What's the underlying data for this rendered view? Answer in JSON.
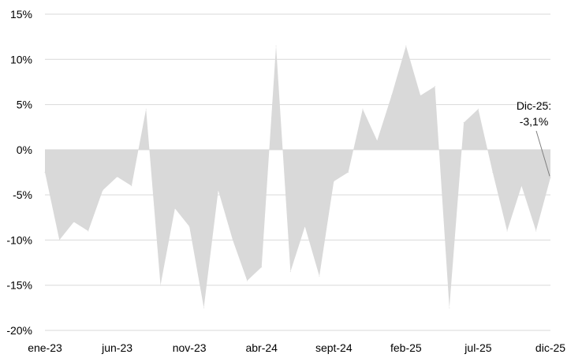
{
  "chart_data": {
    "type": "area",
    "title": "",
    "xlabel": "",
    "ylabel": "",
    "ylim": [
      -20,
      15
    ],
    "yticks": [
      15,
      10,
      5,
      0,
      -5,
      -10,
      -15,
      -20
    ],
    "ytick_labels": [
      "15%",
      "10%",
      "5%",
      "0%",
      "-5%",
      "-10%",
      "-15%",
      "-20%"
    ],
    "xtick_labels": [
      "ene-23",
      "jun-23",
      "nov-23",
      "abr-24",
      "sept-24",
      "feb-25",
      "jul-25",
      "dic-25"
    ],
    "xtick_index": [
      0,
      5,
      10,
      15,
      20,
      25,
      30,
      35
    ],
    "grid": true,
    "fill_color": "#d9d9d9",
    "grid_color": "#d9d9d9",
    "x": [
      "ene-23",
      "feb-23",
      "mar-23",
      "abr-23",
      "may-23",
      "jun-23",
      "jul-23",
      "ago-23",
      "sept-23",
      "oct-23",
      "nov-23",
      "dic-23",
      "ene-24",
      "feb-24",
      "mar-24",
      "abr-24",
      "may-24",
      "jun-24",
      "jul-24",
      "ago-24",
      "sept-24",
      "oct-24",
      "nov-24",
      "dic-24",
      "ene-25",
      "feb-25",
      "mar-25",
      "abr-25",
      "may-25",
      "jun-25",
      "jul-25",
      "ago-25",
      "sept-25",
      "oct-25",
      "nov-25",
      "dic-25"
    ],
    "series": [
      {
        "values": [
          -2.5,
          -10.0,
          -8.0,
          -9.0,
          -4.5,
          -3.0,
          -4.0,
          4.5,
          -15.0,
          -6.5,
          -8.5,
          -17.5,
          -4.5,
          -10.0,
          -14.5,
          -13.0,
          11.5,
          -13.5,
          -8.5,
          -14.0,
          -3.5,
          -2.5,
          4.5,
          1.0,
          6.0,
          11.5,
          6.0,
          7.0,
          -17.5,
          3.0,
          4.5,
          -2.5,
          -9.0,
          -4.0,
          -9.0,
          -3.1
        ]
      }
    ],
    "annotation": {
      "line1": "Dic-25:",
      "line2": "-3,1%",
      "target_index": 35,
      "target_value": -3.1
    }
  }
}
